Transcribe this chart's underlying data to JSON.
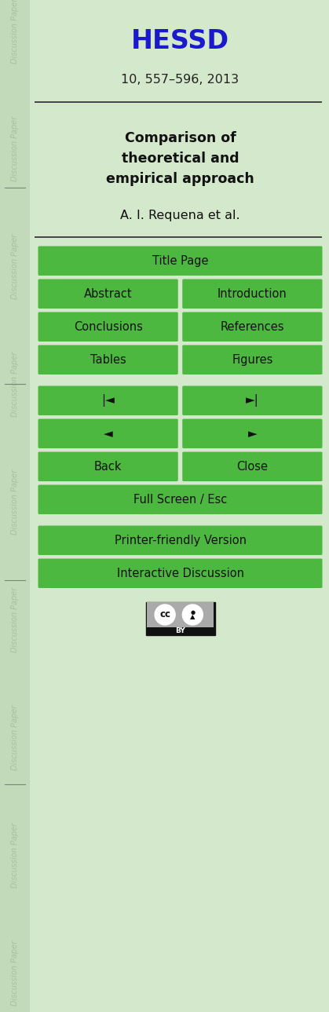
{
  "bg_color": "#d4e8cc",
  "sidebar_color": "#c2d9ba",
  "sidebar_text_color": "#a8bfa0",
  "title_journal": "HESSD",
  "title_journal_color": "#1a1acc",
  "subtitle": "10, 557–596, 2013",
  "paper_title": "Comparison of\ntheoretical and\nempirical approach",
  "paper_title_color": "#111111",
  "authors": "A. I. Requena et al.",
  "authors_color": "#111111",
  "button_color": "#4db840",
  "button_text_color": "#111111",
  "separator_color": "#444444",
  "fig_width": 4.19,
  "fig_height": 12.89,
  "dpi": 100
}
